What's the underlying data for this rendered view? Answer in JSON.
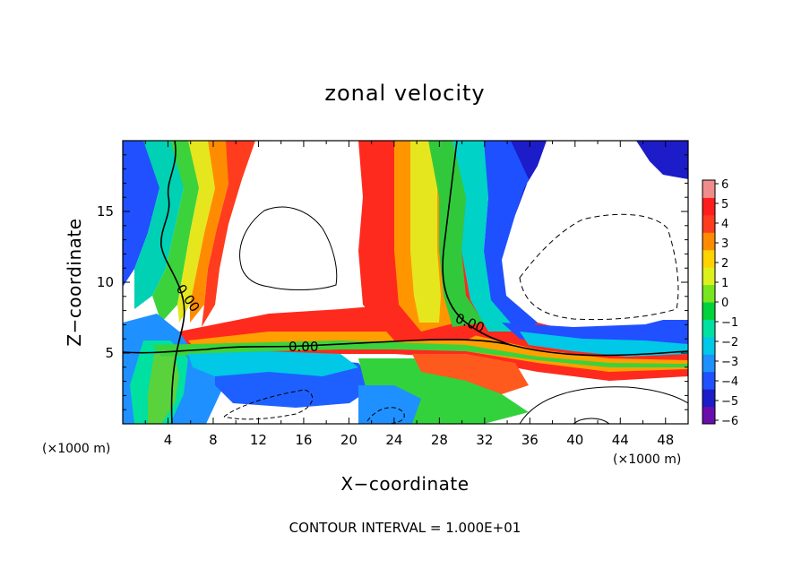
{
  "chart_data": {
    "type": "heatmap",
    "title": "zonal velocity",
    "xlabel": "X−coordinate",
    "ylabel": "Z−coordinate",
    "x_unit_label": "(×1000 m)",
    "z_unit_label": "(×1000 m)",
    "footer": "CONTOUR INTERVAL = 1.000E+01",
    "xlim": [
      0,
      50
    ],
    "ylim": [
      0,
      20
    ],
    "x_ticks": [
      4,
      8,
      12,
      16,
      20,
      24,
      28,
      32,
      36,
      40,
      44,
      48
    ],
    "y_ticks": [
      5,
      10,
      15
    ],
    "contour_label": "0.00",
    "colorbar": {
      "levels": [
        -6,
        -5,
        -4,
        -3,
        -2,
        -1,
        0,
        1,
        2,
        3,
        4,
        5,
        6
      ],
      "level_labels": [
        "−6",
        "−5",
        "−4",
        "−3",
        "−2",
        "−1",
        "0",
        "1",
        "2",
        "3",
        "4",
        "5",
        "6"
      ],
      "colors": [
        "#6a0dad",
        "#1c1cc8",
        "#2050ff",
        "#1e90ff",
        "#00c8e6",
        "#00e0a0",
        "#00d23c",
        "#78e61e",
        "#dcf01e",
        "#ffd200",
        "#ff8c00",
        "#ff3c1e",
        "#ff1e1e",
        "#f08c8c"
      ]
    },
    "field_description_not_rendered": null
  }
}
